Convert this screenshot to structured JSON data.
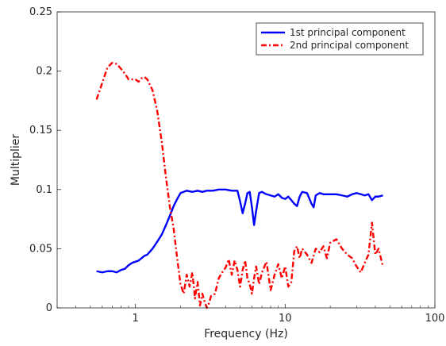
{
  "chart_data": {
    "type": "line",
    "title": "",
    "xlabel": "Frequency (Hz)",
    "ylabel": "Multiplier",
    "xscale": "log",
    "xlim": [
      0.3,
      100
    ],
    "ylim": [
      0,
      0.25
    ],
    "xticks": [
      1,
      10,
      100
    ],
    "xtick_labels": [
      "1",
      "10",
      "100"
    ],
    "yticks": [
      0,
      0.05,
      0.1,
      0.15,
      0.2,
      0.25
    ],
    "ytick_labels": [
      "0",
      "0.05",
      "0.1",
      "0.15",
      "0.2",
      "0.25"
    ],
    "grid": false,
    "legend_position": "top-right",
    "series": [
      {
        "name": "1st principal component",
        "color": "#0000ff",
        "dash": "solid",
        "x": [
          0.55,
          0.6,
          0.65,
          0.7,
          0.75,
          0.8,
          0.85,
          0.9,
          0.95,
          1.0,
          1.05,
          1.1,
          1.15,
          1.2,
          1.3,
          1.4,
          1.5,
          1.6,
          1.7,
          1.8,
          1.9,
          2.0,
          2.1,
          2.2,
          2.4,
          2.6,
          2.8,
          3.0,
          3.3,
          3.6,
          4.0,
          4.4,
          4.8,
          5.0,
          5.2,
          5.4,
          5.6,
          5.8,
          6.0,
          6.2,
          6.4,
          6.7,
          7.0,
          7.5,
          8.0,
          8.5,
          9.0,
          9.5,
          10,
          10.5,
          11,
          11.5,
          12,
          12.5,
          13,
          14,
          15,
          15.5,
          16,
          17,
          18,
          20,
          22,
          24,
          26,
          28,
          30,
          32,
          34,
          36,
          38,
          40,
          42,
          45
        ],
        "values": [
          0.031,
          0.03,
          0.031,
          0.031,
          0.03,
          0.032,
          0.033,
          0.036,
          0.038,
          0.039,
          0.04,
          0.042,
          0.044,
          0.045,
          0.05,
          0.056,
          0.062,
          0.07,
          0.078,
          0.086,
          0.092,
          0.097,
          0.098,
          0.099,
          0.098,
          0.099,
          0.098,
          0.099,
          0.099,
          0.1,
          0.1,
          0.099,
          0.099,
          0.09,
          0.08,
          0.088,
          0.097,
          0.098,
          0.085,
          0.07,
          0.082,
          0.097,
          0.098,
          0.096,
          0.095,
          0.094,
          0.096,
          0.093,
          0.092,
          0.094,
          0.091,
          0.088,
          0.086,
          0.094,
          0.098,
          0.097,
          0.088,
          0.085,
          0.095,
          0.097,
          0.096,
          0.096,
          0.096,
          0.095,
          0.094,
          0.096,
          0.097,
          0.096,
          0.095,
          0.096,
          0.091,
          0.094,
          0.094,
          0.095
        ]
      },
      {
        "name": "2nd principal component",
        "color": "#ff0000",
        "dash": "dashdot",
        "x": [
          0.55,
          0.6,
          0.65,
          0.7,
          0.75,
          0.8,
          0.85,
          0.9,
          1.0,
          1.05,
          1.1,
          1.15,
          1.2,
          1.3,
          1.4,
          1.5,
          1.6,
          1.7,
          1.8,
          1.9,
          2.0,
          2.1,
          2.2,
          2.3,
          2.4,
          2.5,
          2.6,
          2.7,
          2.8,
          2.9,
          3.0,
          3.1,
          3.2,
          3.4,
          3.6,
          3.8,
          4.0,
          4.2,
          4.4,
          4.6,
          4.8,
          5.0,
          5.2,
          5.4,
          5.6,
          5.8,
          6.0,
          6.2,
          6.4,
          6.7,
          7.0,
          7.5,
          8.0,
          8.5,
          9.0,
          9.5,
          10,
          10.5,
          11,
          11.5,
          12,
          12.5,
          13,
          14,
          15,
          16,
          17,
          18,
          19,
          20,
          22,
          24,
          26,
          28,
          30,
          32,
          34,
          36,
          38,
          40,
          42,
          44,
          45
        ],
        "values": [
          0.176,
          0.19,
          0.203,
          0.207,
          0.206,
          0.202,
          0.198,
          0.193,
          0.193,
          0.191,
          0.194,
          0.195,
          0.193,
          0.184,
          0.166,
          0.14,
          0.11,
          0.085,
          0.067,
          0.042,
          0.02,
          0.012,
          0.028,
          0.018,
          0.03,
          0.008,
          0.022,
          0.002,
          0.012,
          0.005,
          0.0,
          0.004,
          0.01,
          0.012,
          0.025,
          0.03,
          0.034,
          0.041,
          0.028,
          0.04,
          0.032,
          0.018,
          0.032,
          0.04,
          0.025,
          0.02,
          0.012,
          0.025,
          0.035,
          0.02,
          0.03,
          0.039,
          0.015,
          0.028,
          0.037,
          0.025,
          0.035,
          0.018,
          0.022,
          0.048,
          0.052,
          0.042,
          0.05,
          0.045,
          0.038,
          0.05,
          0.047,
          0.052,
          0.042,
          0.055,
          0.058,
          0.05,
          0.045,
          0.042,
          0.035,
          0.03,
          0.038,
          0.045,
          0.072,
          0.045,
          0.05,
          0.04,
          0.035
        ]
      }
    ]
  }
}
